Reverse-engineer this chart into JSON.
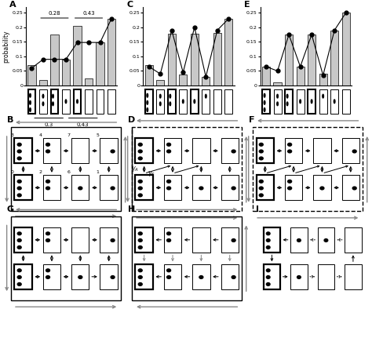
{
  "panel_A": {
    "bars": [
      0.07,
      0.02,
      0.175,
      0.09,
      0.205,
      0.025,
      0.148,
      0.23
    ],
    "dots": [
      0.06,
      0.09,
      0.09,
      0.09,
      0.148,
      0.148,
      0.148,
      0.23
    ],
    "ylim": [
      0,
      0.27
    ],
    "yticks": [
      0,
      0.05,
      0.1,
      0.15,
      0.2,
      0.25
    ],
    "ylabel": "probability"
  },
  "panel_C": {
    "bars": [
      0.07,
      0.02,
      0.178,
      0.038,
      0.178,
      0.03,
      0.18,
      0.23
    ],
    "dots": [
      0.065,
      0.04,
      0.19,
      0.045,
      0.2,
      0.03,
      0.19,
      0.23
    ],
    "ylim": [
      0,
      0.27
    ],
    "yticks": [
      0,
      0.05,
      0.1,
      0.15,
      0.2,
      0.25
    ]
  },
  "panel_E": {
    "bars": [
      0.065,
      0.01,
      0.175,
      0.065,
      0.175,
      0.04,
      0.19,
      0.25
    ],
    "dots": [
      0.065,
      0.05,
      0.175,
      0.065,
      0.175,
      0.035,
      0.19,
      0.25
    ],
    "ylim": [
      0,
      0.27
    ],
    "yticks": [
      0,
      0.05,
      0.1,
      0.15,
      0.2,
      0.25
    ]
  },
  "bar_color": "#c8c8c8",
  "figure_bg": "#ffffff"
}
